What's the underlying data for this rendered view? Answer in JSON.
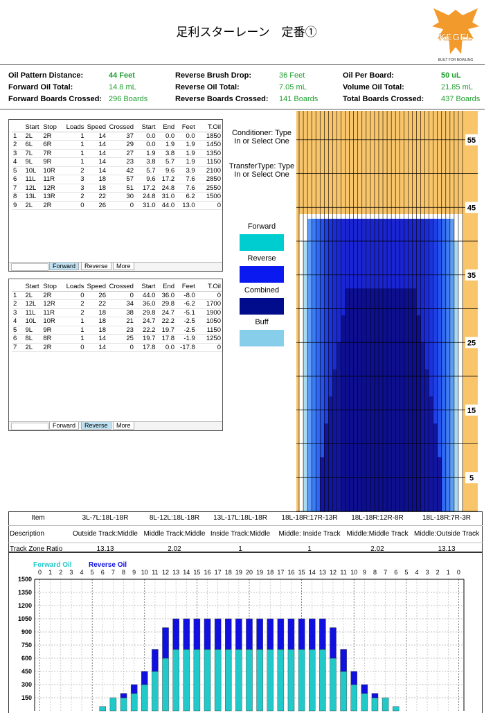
{
  "header": {
    "title": "足利スターレーン　定番①",
    "logo": "KEGEL",
    "logo_tagline": "BUILT FOR BOWLING"
  },
  "info": [
    [
      [
        "Oil Pattern Distance:",
        "44 Feet"
      ],
      [
        "Forward Oil Total:",
        "14.8 mL"
      ],
      [
        "Forward Boards Crossed:",
        "296 Boards"
      ]
    ],
    [
      [
        "Reverse Brush Drop:",
        "36 Feet"
      ],
      [
        "Reverse Oil Total:",
        "7.05 mL"
      ],
      [
        "Reverse Boards Crossed:",
        "141 Boards"
      ]
    ],
    [
      [
        "Oil Per Board:",
        "50 uL"
      ],
      [
        "Volume Oil Total:",
        "21.85 mL"
      ],
      [
        "Total Boards Crossed:",
        "437 Boards"
      ]
    ]
  ],
  "table_headers": [
    "Start",
    "Stop",
    "Loads",
    "Speed",
    "Crossed",
    "Start",
    "End",
    "Feet",
    "T.Oil"
  ],
  "sheet_tabs": [
    "Forward",
    "Reverse",
    "More"
  ],
  "forward_table": [
    [
      "1",
      "2L",
      "2R",
      "1",
      "14",
      "37",
      "0.0",
      "0.0",
      "0.0",
      "1850"
    ],
    [
      "2",
      "6L",
      "6R",
      "1",
      "14",
      "29",
      "0.0",
      "1.9",
      "1.9",
      "1450"
    ],
    [
      "3",
      "7L",
      "7R",
      "1",
      "14",
      "27",
      "1.9",
      "3.8",
      "1.9",
      "1350"
    ],
    [
      "4",
      "9L",
      "9R",
      "1",
      "14",
      "23",
      "3.8",
      "5.7",
      "1.9",
      "1150"
    ],
    [
      "5",
      "10L",
      "10R",
      "2",
      "14",
      "42",
      "5.7",
      "9.6",
      "3.9",
      "2100"
    ],
    [
      "6",
      "11L",
      "11R",
      "3",
      "18",
      "57",
      "9.6",
      "17.2",
      "7.6",
      "2850"
    ],
    [
      "7",
      "12L",
      "12R",
      "3",
      "18",
      "51",
      "17.2",
      "24.8",
      "7.6",
      "2550"
    ],
    [
      "8",
      "13L",
      "13R",
      "2",
      "22",
      "30",
      "24.8",
      "31.0",
      "6.2",
      "1500"
    ],
    [
      "9",
      "2L",
      "2R",
      "0",
      "26",
      "0",
      "31.0",
      "44.0",
      "13.0",
      "0"
    ]
  ],
  "reverse_table": [
    [
      "1",
      "2L",
      "2R",
      "0",
      "26",
      "0",
      "44.0",
      "36.0",
      "-8.0",
      "0"
    ],
    [
      "2",
      "12L",
      "12R",
      "2",
      "22",
      "34",
      "36.0",
      "29.8",
      "-6.2",
      "1700"
    ],
    [
      "3",
      "11L",
      "11R",
      "2",
      "18",
      "38",
      "29.8",
      "24.7",
      "-5.1",
      "1900"
    ],
    [
      "4",
      "10L",
      "10R",
      "1",
      "18",
      "21",
      "24.7",
      "22.2",
      "-2.5",
      "1050"
    ],
    [
      "5",
      "9L",
      "9R",
      "1",
      "18",
      "23",
      "22.2",
      "19.7",
      "-2.5",
      "1150"
    ],
    [
      "6",
      "8L",
      "8R",
      "1",
      "14",
      "25",
      "19.7",
      "17.8",
      "-1.9",
      "1250"
    ],
    [
      "7",
      "2L",
      "2R",
      "0",
      "14",
      "0",
      "17.8",
      "0.0",
      "-17.8",
      "0"
    ]
  ],
  "conditioner": "Conditioner: Type In or Select One",
  "transfer_type": "TransferType: Type In or Select One",
  "legend": [
    {
      "label": "Forward",
      "color": "#00cdd0"
    },
    {
      "label": "Reverse",
      "color": "#0a19f0"
    },
    {
      "label": "Combined",
      "color": "#000c8c"
    },
    {
      "label": "Buff",
      "color": "#87ceeb"
    }
  ],
  "lane_graph": {
    "feet_labels": [
      55,
      45,
      35,
      25,
      15,
      5
    ]
  },
  "track_zones": [
    [
      "Item",
      "3L-7L:18L-18R",
      "8L-12L:18L-18R",
      "13L-17L:18L-18R",
      "18L-18R:17R-13R",
      "18L-18R:12R-8R",
      "18L-18R:7R-3R"
    ],
    [
      "Description",
      "Outside Track:Middle",
      "Middle Track:Middle",
      "Inside Track:Middle",
      "Middle: Inside Track",
      "Middle:Middle Track",
      "Middle:Outside Track"
    ],
    [
      "Track Zone Ratio",
      "13.13",
      "2.02",
      "1",
      "1",
      "2.02",
      "13.13"
    ]
  ],
  "chart_data": {
    "type": "bar",
    "stacked": true,
    "grid": true,
    "categories": [
      0,
      1,
      2,
      3,
      4,
      5,
      6,
      7,
      8,
      9,
      10,
      11,
      12,
      13,
      14,
      15,
      16,
      17,
      18,
      19,
      20,
      19,
      18,
      17,
      16,
      15,
      14,
      13,
      12,
      11,
      10,
      9,
      8,
      7,
      6,
      5,
      4,
      3,
      2,
      1,
      0
    ],
    "series": [
      {
        "name": "Forward Oil",
        "color": "#22c9c9",
        "values": [
          0,
          0,
          0,
          0,
          0,
          0,
          50,
          150,
          150,
          200,
          300,
          450,
          600,
          700,
          700,
          700,
          700,
          700,
          700,
          700,
          700,
          700,
          700,
          700,
          700,
          700,
          700,
          700,
          600,
          450,
          300,
          200,
          150,
          150,
          50,
          0,
          0,
          0,
          0,
          0,
          0
        ]
      },
      {
        "name": "Reverse Oil",
        "color": "#1010e0",
        "values": [
          0,
          0,
          0,
          0,
          0,
          0,
          0,
          0,
          50,
          100,
          150,
          250,
          350,
          350,
          350,
          350,
          350,
          350,
          350,
          350,
          350,
          350,
          350,
          350,
          350,
          350,
          350,
          350,
          350,
          250,
          150,
          100,
          50,
          0,
          0,
          0,
          0,
          0,
          0,
          0,
          0
        ]
      }
    ],
    "ylim": [
      0,
      1500
    ],
    "yticks": [
      150,
      300,
      450,
      600,
      750,
      900,
      1050,
      1200,
      1350,
      1500
    ]
  }
}
